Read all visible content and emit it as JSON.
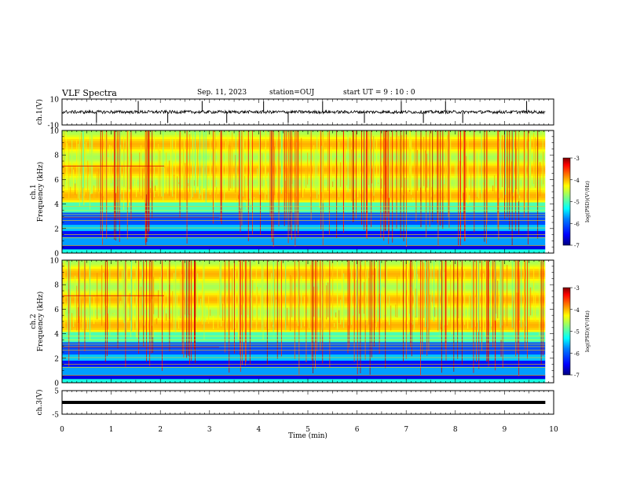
{
  "header": {
    "title": "VLF Spectra",
    "date": "Sep. 11, 2023",
    "station": "station=OUJ",
    "start": "start  UT =   9 : 10 : 0"
  },
  "chart_data": [
    {
      "name": "ch1-voltage",
      "type": "line",
      "ylabel": "ch.1(V)",
      "ylim": [
        -10,
        10
      ],
      "yticks": [
        "10",
        "-10"
      ],
      "xlim": [
        0,
        10
      ],
      "baseline": 0,
      "noise_amplitude": 1.2,
      "spikes": [
        0.7,
        1.55,
        2.15,
        2.85,
        3.35,
        4.1,
        4.6,
        5.3,
        6.15,
        6.9,
        7.35,
        7.8,
        8.15,
        9.45
      ]
    },
    {
      "name": "ch1-spectrogram",
      "type": "heatmap",
      "ylabel": "ch.1\nFrequency (kHz)",
      "ylim": [
        0,
        10
      ],
      "yticks": [
        "0",
        "2",
        "4",
        "6",
        "8",
        "10"
      ],
      "xlim": [
        0,
        10
      ],
      "x_data_extent": 9.83,
      "colorbar": {
        "label": "log(PSD)(V²/Hz)",
        "range": [
          -7,
          -3
        ],
        "ticks": [
          "-3",
          "-4",
          "-5",
          "-6",
          "-7"
        ]
      }
    },
    {
      "name": "ch2-spectrogram",
      "type": "heatmap",
      "ylabel": "ch.2\nFrequency (kHz)",
      "ylim": [
        0,
        10
      ],
      "yticks": [
        "0",
        "2",
        "4",
        "6",
        "8",
        "10"
      ],
      "xlim": [
        0,
        10
      ],
      "x_data_extent": 9.83,
      "colorbar": {
        "label": "log(PSD)(V²/Hz)",
        "range": [
          -7,
          -3
        ],
        "ticks": [
          "-3",
          "-4",
          "-5",
          "-6",
          "-7"
        ]
      }
    },
    {
      "name": "ch3-voltage",
      "type": "line",
      "ylabel": "ch.3(V)",
      "ylim": [
        -5,
        5
      ],
      "yticks": [
        "5",
        "-5"
      ],
      "xlim": [
        0,
        10
      ],
      "baseline": 0
    }
  ],
  "x_axis": {
    "label": "Time (min)",
    "ticks": [
      "0",
      "1",
      "2",
      "3",
      "4",
      "5",
      "6",
      "7",
      "8",
      "9",
      "10"
    ]
  },
  "colors": {
    "colormap": [
      "#00007f",
      "#0000ff",
      "#007fff",
      "#00ffff",
      "#7fff7f",
      "#ffff00",
      "#ff7f00",
      "#ff0000",
      "#7f0000"
    ]
  }
}
